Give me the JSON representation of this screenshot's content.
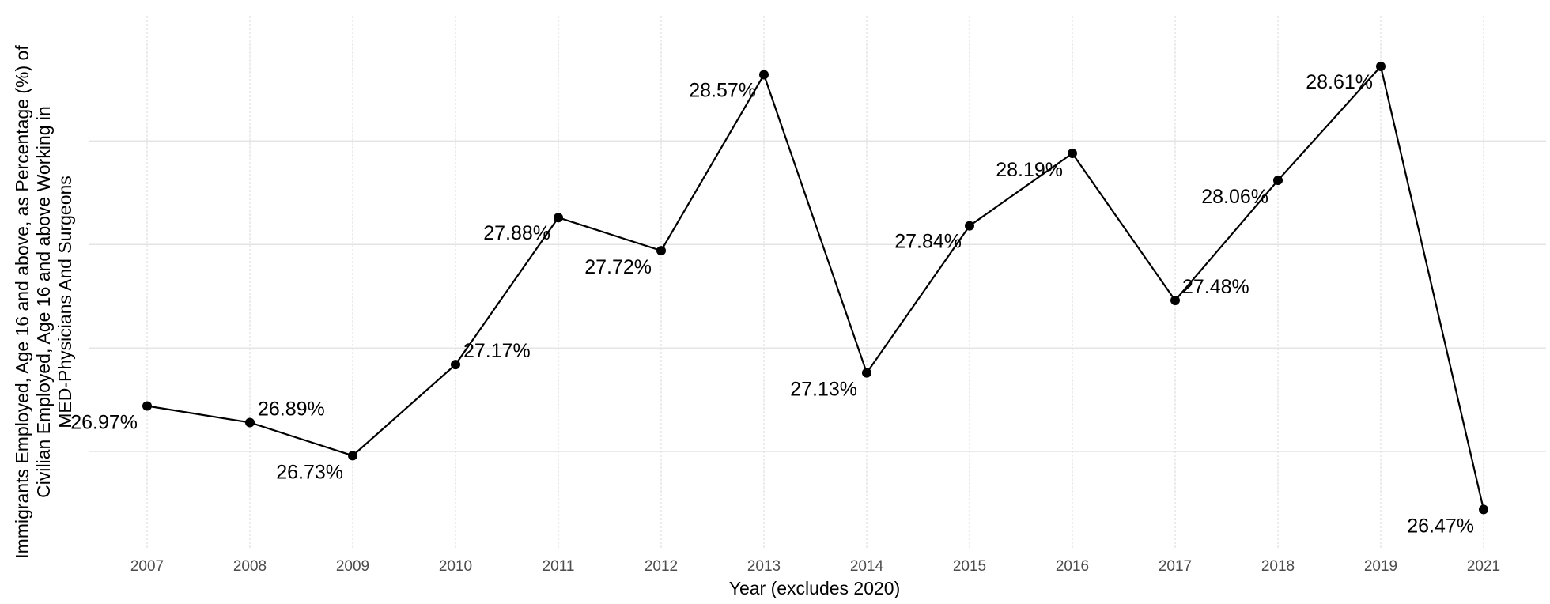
{
  "chart_data": {
    "type": "line",
    "title": "",
    "xlabel": "Year (excludes 2020)",
    "ylabel_lines": [
      "Immigrants Employed, Age 16 and above, as Percentage (%) of",
      "Civilian Employed, Age 16 and above Working in",
      "MED-Physicians And Surgeons"
    ],
    "categories": [
      "2007",
      "2008",
      "2009",
      "2010",
      "2011",
      "2012",
      "2013",
      "2014",
      "2015",
      "2016",
      "2017",
      "2018",
      "2019",
      "2021"
    ],
    "values": [
      26.97,
      26.89,
      26.73,
      27.17,
      27.88,
      27.72,
      28.57,
      27.13,
      27.84,
      28.19,
      27.48,
      28.06,
      28.61,
      26.47
    ],
    "data_labels": [
      "26.97%",
      "26.89%",
      "26.73%",
      "27.17%",
      "27.88%",
      "27.72%",
      "28.57%",
      "27.13%",
      "27.84%",
      "28.19%",
      "27.48%",
      "28.06%",
      "28.61%",
      "26.47%"
    ],
    "label_positions": [
      "below-left",
      "above-right",
      "below-left",
      "above-right",
      "left",
      "below-left",
      "left",
      "below-left",
      "left",
      "below-left",
      "right",
      "below-left",
      "left",
      "below-left"
    ],
    "ylim": [
      26.38,
      28.74
    ],
    "y_gridlines": [
      26.75,
      27.25,
      27.75,
      28.25
    ],
    "y_tick_labels_shown": false,
    "grid": true,
    "legend": "none",
    "colors": {
      "line": "#000000",
      "point": "#000000",
      "grid": "#e3e3e3",
      "tick_text": "#4d4d4d"
    }
  }
}
